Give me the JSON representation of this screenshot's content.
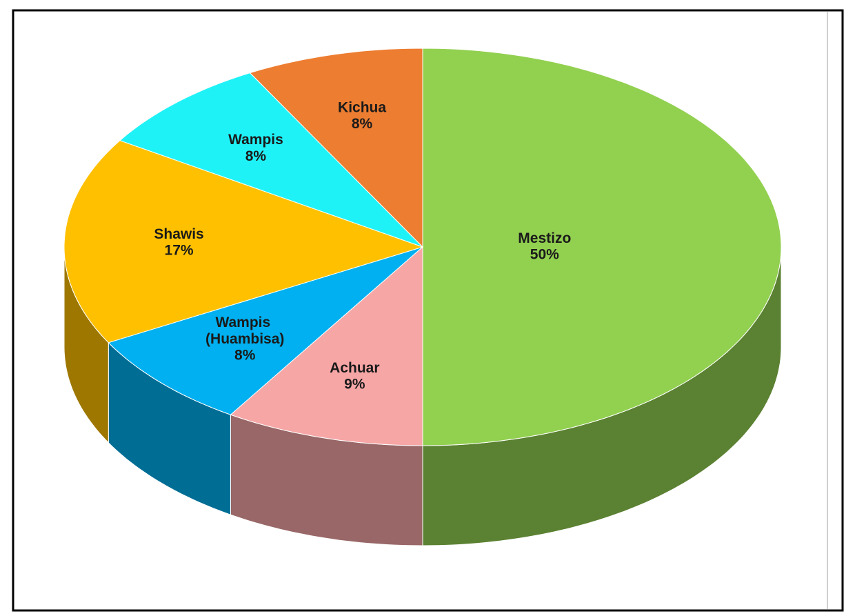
{
  "chart_data": {
    "type": "pie",
    "categories": [
      "Mestizo",
      "Achuar",
      "Wampis (Huambisa)",
      "Shawis",
      "Wampis",
      "Kichua"
    ],
    "values": [
      50,
      9,
      8,
      17,
      8,
      8
    ],
    "value_labels": [
      "50%",
      "9%",
      "8%",
      "17%",
      "8%",
      "8%"
    ],
    "colors": [
      "#92d050",
      "#f7a6a6",
      "#00b0f0",
      "#ffc000",
      "#1ff2f7",
      "#ed7d31"
    ]
  }
}
